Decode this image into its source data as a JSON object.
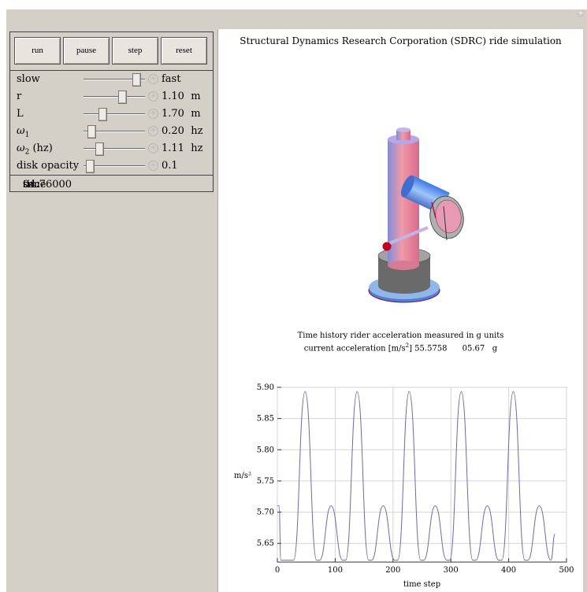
{
  "controls": {
    "buttons": [
      {
        "label": "run"
      },
      {
        "label": "pause"
      },
      {
        "label": "step"
      },
      {
        "label": "reset"
      }
    ],
    "speed": {
      "label_left": "slow",
      "label_right": "fast",
      "position": 0.92
    },
    "r": {
      "label": "r",
      "value": "1.10",
      "unit": "m",
      "position": 0.65
    },
    "L": {
      "label": "L",
      "value": "1.70",
      "unit": "m",
      "position": 0.28
    },
    "omega1": {
      "label": "ω",
      "sub": "1",
      "value": "0.20",
      "unit": "hz",
      "position": 0.08
    },
    "omega2": {
      "label": "ω",
      "sub": "2",
      "suffix": " (hz)",
      "value": "1.11",
      "unit": "hz",
      "position": 0.22
    },
    "opacity": {
      "label": "disk opacity",
      "value": "0.1",
      "position": 0.05
    },
    "status": {
      "label": "time",
      "value": "04.76000",
      "unit": "sec"
    }
  },
  "display": {
    "title": "Structural Dynamics Research Corporation (SDRC) ride simulation",
    "chart_title_line1": "Time history rider acceleration measured in g units",
    "chart_title_line2_prefix": "current acceleration [m/s",
    "chart_title_line2_sup": "2",
    "chart_title_line2_mid": "] 55.5758",
    "chart_title_line2_g": "05.67",
    "chart_title_line2_unit": "g"
  },
  "chart_data": {
    "type": "line",
    "xlabel": "time step",
    "ylabel": "m/s²",
    "xlim": [
      0,
      500
    ],
    "ylim": [
      5.62,
      5.9
    ],
    "x_ticks": [
      0,
      100,
      200,
      300,
      400,
      500
    ],
    "y_ticks": [
      5.65,
      5.7,
      5.75,
      5.8,
      5.85,
      5.9
    ],
    "x_end": 480,
    "big_peaks": [
      {
        "x": 48,
        "y": 5.893
      },
      {
        "x": 138,
        "y": 5.893
      },
      {
        "x": 228,
        "y": 5.893
      },
      {
        "x": 318,
        "y": 5.893
      },
      {
        "x": 408,
        "y": 5.893
      }
    ],
    "small_peaks": [
      {
        "x": 3,
        "y": 5.71
      },
      {
        "x": 93,
        "y": 5.71
      },
      {
        "x": 183,
        "y": 5.71
      },
      {
        "x": 273,
        "y": 5.71
      },
      {
        "x": 363,
        "y": 5.71
      },
      {
        "x": 453,
        "y": 5.71
      }
    ],
    "minimum": 5.623,
    "last_value": 5.665,
    "grid": true,
    "line_color": "#6b67b8"
  }
}
